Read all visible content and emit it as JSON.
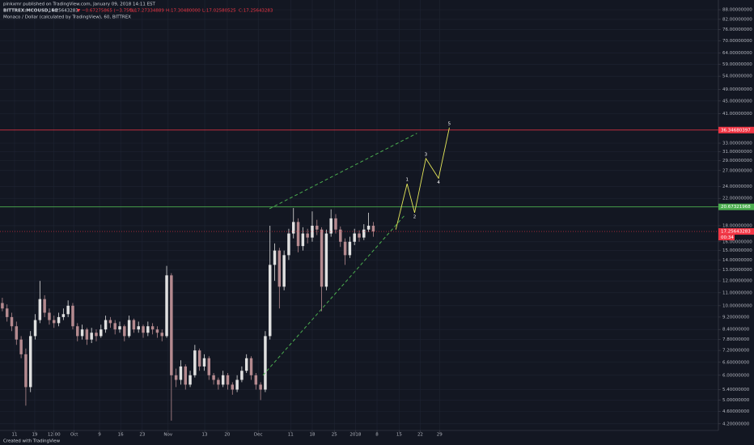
{
  "chart_data": {
    "type": "candlestick",
    "title": "pinkxmr published on TradingView.com, January 09, 2018 14:11 EST",
    "symbol": "BITTREX:MCOUSD, 60",
    "price": "17.25643283",
    "change": "▼ −0.67275865 (−3.75%)",
    "legend": [
      "O:17.27334889",
      "H:17.30480000",
      "L:17.02580525",
      "C:17.25643283"
    ],
    "subtitle": "Monaco / Dollar (calculated by TradingView), 60, BITTREX",
    "footer": "Created with TradingView",
    "log_scale": true,
    "grid": true,
    "up_color": "#e0e0e0",
    "down_color": "#b58a8f",
    "ylim": [
      4.0,
      91.2
    ],
    "xlim": [
      -0.5,
      152.5
    ],
    "yticks": [
      {
        "value": 4.2,
        "label": "4.20000000"
      },
      {
        "value": 4.6,
        "label": "4.60000000"
      },
      {
        "value": 5.0,
        "label": "5.00000000"
      },
      {
        "value": 5.4,
        "label": "5.40000000"
      },
      {
        "value": 6.0,
        "label": "6.00000000"
      },
      {
        "value": 6.6,
        "label": "6.60000000"
      },
      {
        "value": 7.2,
        "label": "7.20000000"
      },
      {
        "value": 7.8,
        "label": "7.80000000"
      },
      {
        "value": 8.4,
        "label": "8.40000000"
      },
      {
        "value": 9.2,
        "label": "9.20000000"
      },
      {
        "value": 10.0,
        "label": "10.00000000"
      },
      {
        "value": 11.0,
        "label": "11.00000000"
      },
      {
        "value": 12.0,
        "label": "12.00000000"
      },
      {
        "value": 13.0,
        "label": "13.00000000"
      },
      {
        "value": 14.0,
        "label": "14.00000000"
      },
      {
        "value": 15.0,
        "label": "15.00000000"
      },
      {
        "value": 16.0,
        "label": "16.00000000"
      },
      {
        "value": 18.0,
        "label": "18.00000000"
      },
      {
        "value": 22.0,
        "label": "22.00000000"
      },
      {
        "value": 24.0,
        "label": "24.00000000"
      },
      {
        "value": 27.0,
        "label": "27.00000000"
      },
      {
        "value": 29.0,
        "label": "29.00000000"
      },
      {
        "value": 31.0,
        "label": "31.00000000"
      },
      {
        "value": 33.0,
        "label": "33.00000000"
      },
      {
        "value": 41.0,
        "label": "41.00000000"
      },
      {
        "value": 45.0,
        "label": "45.00000000"
      },
      {
        "value": 49.0,
        "label": "49.00000000"
      },
      {
        "value": 54.0,
        "label": "54.00000000"
      },
      {
        "value": 59.0,
        "label": "59.00000000"
      },
      {
        "value": 64.0,
        "label": "64.00000000"
      },
      {
        "value": 70.0,
        "label": "70.00000000"
      },
      {
        "value": 76.0,
        "label": "76.00000000"
      },
      {
        "value": 82.0,
        "label": "82.00000000"
      },
      {
        "value": 88.0,
        "label": "88.00000000"
      }
    ],
    "xticks": [
      {
        "value": 2.6,
        "label": "11"
      },
      {
        "value": 6.9,
        "label": "19"
      },
      {
        "value": 11.0,
        "label": "12:00"
      },
      {
        "value": 15.3,
        "label": "Oct"
      },
      {
        "value": 20.7,
        "label": "9"
      },
      {
        "value": 25.2,
        "label": "16"
      },
      {
        "value": 29.8,
        "label": "23"
      },
      {
        "value": 35.3,
        "label": "Nov"
      },
      {
        "value": 43.1,
        "label": "13"
      },
      {
        "value": 47.9,
        "label": "20"
      },
      {
        "value": 54.5,
        "label": "Dec"
      },
      {
        "value": 61.4,
        "label": "11"
      },
      {
        "value": 66.0,
        "label": "18"
      },
      {
        "value": 70.7,
        "label": "25"
      },
      {
        "value": 75.2,
        "label": "2018"
      },
      {
        "value": 79.8,
        "label": "8"
      },
      {
        "value": 84.5,
        "label": "15"
      },
      {
        "value": 89.0,
        "label": "22"
      },
      {
        "value": 93.1,
        "label": "29"
      }
    ],
    "ohlc": [
      [
        10.2,
        10.6,
        9.6,
        9.8
      ],
      [
        9.8,
        10.1,
        8.9,
        9.2
      ],
      [
        9.2,
        9.5,
        8.3,
        8.6
      ],
      [
        8.6,
        8.9,
        7.5,
        7.8
      ],
      [
        7.8,
        8.0,
        6.8,
        7.0
      ],
      [
        7.0,
        7.3,
        4.8,
        5.5
      ],
      [
        5.5,
        8.3,
        5.3,
        8.0
      ],
      [
        8.0,
        9.4,
        7.8,
        9.0
      ],
      [
        9.0,
        12.0,
        8.8,
        10.5
      ],
      [
        10.5,
        10.8,
        9.2,
        9.5
      ],
      [
        9.5,
        9.8,
        8.7,
        9.0
      ],
      [
        9.0,
        9.3,
        8.5,
        8.8
      ],
      [
        8.8,
        9.5,
        8.6,
        9.2
      ],
      [
        9.2,
        9.8,
        9.0,
        9.4
      ],
      [
        9.4,
        10.4,
        9.2,
        10.0
      ],
      [
        10.0,
        10.2,
        8.4,
        8.6
      ],
      [
        8.6,
        8.8,
        7.7,
        8.0
      ],
      [
        8.0,
        8.7,
        7.8,
        8.4
      ],
      [
        8.4,
        8.5,
        7.5,
        7.8
      ],
      [
        7.8,
        8.5,
        7.6,
        8.2
      ],
      [
        8.2,
        8.4,
        7.7,
        8.0
      ],
      [
        8.0,
        8.7,
        7.9,
        8.4
      ],
      [
        8.4,
        9.3,
        8.2,
        9.0
      ],
      [
        9.0,
        9.2,
        8.5,
        8.8
      ],
      [
        8.8,
        9.0,
        8.1,
        8.4
      ],
      [
        8.4,
        8.9,
        8.2,
        8.6
      ],
      [
        8.6,
        8.7,
        7.7,
        8.0
      ],
      [
        8.0,
        9.3,
        7.9,
        9.0
      ],
      [
        9.0,
        9.1,
        8.2,
        8.4
      ],
      [
        8.4,
        8.9,
        8.2,
        8.6
      ],
      [
        8.6,
        8.7,
        7.9,
        8.2
      ],
      [
        8.2,
        8.9,
        8.0,
        8.6
      ],
      [
        8.6,
        8.8,
        8.1,
        8.4
      ],
      [
        8.4,
        8.6,
        7.9,
        8.2
      ],
      [
        8.2,
        8.4,
        7.7,
        8.0
      ],
      [
        8.0,
        13.4,
        7.9,
        12.5
      ],
      [
        12.5,
        12.7,
        4.3,
        6.0
      ],
      [
        6.0,
        6.3,
        5.5,
        5.8
      ],
      [
        5.8,
        6.7,
        5.6,
        6.4
      ],
      [
        6.4,
        6.5,
        5.4,
        5.6
      ],
      [
        5.6,
        6.2,
        5.5,
        6.0
      ],
      [
        6.0,
        7.5,
        5.9,
        7.2
      ],
      [
        7.2,
        7.3,
        6.2,
        6.4
      ],
      [
        6.4,
        7.0,
        6.2,
        6.8
      ],
      [
        6.8,
        6.9,
        5.8,
        6.0
      ],
      [
        6.0,
        6.1,
        5.6,
        5.8
      ],
      [
        5.8,
        5.9,
        5.4,
        5.6
      ],
      [
        5.6,
        6.2,
        5.5,
        6.0
      ],
      [
        6.0,
        6.1,
        5.4,
        5.6
      ],
      [
        5.6,
        5.7,
        5.2,
        5.4
      ],
      [
        5.4,
        6.0,
        5.3,
        5.8
      ],
      [
        5.8,
        6.4,
        5.7,
        6.2
      ],
      [
        6.2,
        7.0,
        6.1,
        6.8
      ],
      [
        6.8,
        6.9,
        5.8,
        6.0
      ],
      [
        6.0,
        6.1,
        5.4,
        5.6
      ],
      [
        5.6,
        5.7,
        5.0,
        5.4
      ],
      [
        5.4,
        8.3,
        5.3,
        8.0
      ],
      [
        8.0,
        18.0,
        7.8,
        13.5
      ],
      [
        13.5,
        15.8,
        12.0,
        15.0
      ],
      [
        15.0,
        15.3,
        9.8,
        11.5
      ],
      [
        11.5,
        15.0,
        11.2,
        14.5
      ],
      [
        14.5,
        17.6,
        14.0,
        17.0
      ],
      [
        17.0,
        20.5,
        16.4,
        18.5
      ],
      [
        18.5,
        19.0,
        14.8,
        15.5
      ],
      [
        15.5,
        17.8,
        15.0,
        17.0
      ],
      [
        17.0,
        17.6,
        15.8,
        16.5
      ],
      [
        16.5,
        20.0,
        16.0,
        18.0
      ],
      [
        18.0,
        18.8,
        16.8,
        17.5
      ],
      [
        17.5,
        17.8,
        9.6,
        11.5
      ],
      [
        11.5,
        17.5,
        11.2,
        17.0
      ],
      [
        17.0,
        20.3,
        16.6,
        19.0
      ],
      [
        19.0,
        19.6,
        17.0,
        17.5
      ],
      [
        17.5,
        17.9,
        15.4,
        16.0
      ],
      [
        16.0,
        16.4,
        13.5,
        14.5
      ],
      [
        14.5,
        16.6,
        14.2,
        16.0
      ],
      [
        16.0,
        17.6,
        15.6,
        17.0
      ],
      [
        17.0,
        17.4,
        16.0,
        16.5
      ],
      [
        16.5,
        18.2,
        16.2,
        17.5
      ],
      [
        17.5,
        19.8,
        17.2,
        18.0
      ],
      [
        18.0,
        18.5,
        16.6,
        17.26
      ]
    ],
    "hlines": [
      {
        "value": 36.34680397,
        "label": "36.34680397",
        "color": "#f23645"
      },
      {
        "value": 20.67321968,
        "label": "20.67321968",
        "color": "#4caf50"
      }
    ],
    "last_price": {
      "value": 17.25643283,
      "label": "17.25643283",
      "color": "#f23645",
      "countdown": "00:34"
    },
    "trendlines": {
      "color": "#4caf50",
      "lines": [
        {
          "x": [
            56.9,
            88.3
          ],
          "y": [
            20.4,
            35.5
          ]
        },
        {
          "x": [
            55.5,
            85.9
          ],
          "y": [
            6.0,
            19.6
          ]
        }
      ]
    },
    "wave": {
      "color": "#e6e85a",
      "x": [
        83.8,
        86.2,
        87.8,
        90.2,
        92.9,
        95.2
      ],
      "y": [
        17.5,
        24.5,
        19.8,
        29.5,
        25.5,
        37.0
      ],
      "labels": [
        null,
        "1",
        "2",
        "3",
        "4",
        "5"
      ]
    }
  }
}
